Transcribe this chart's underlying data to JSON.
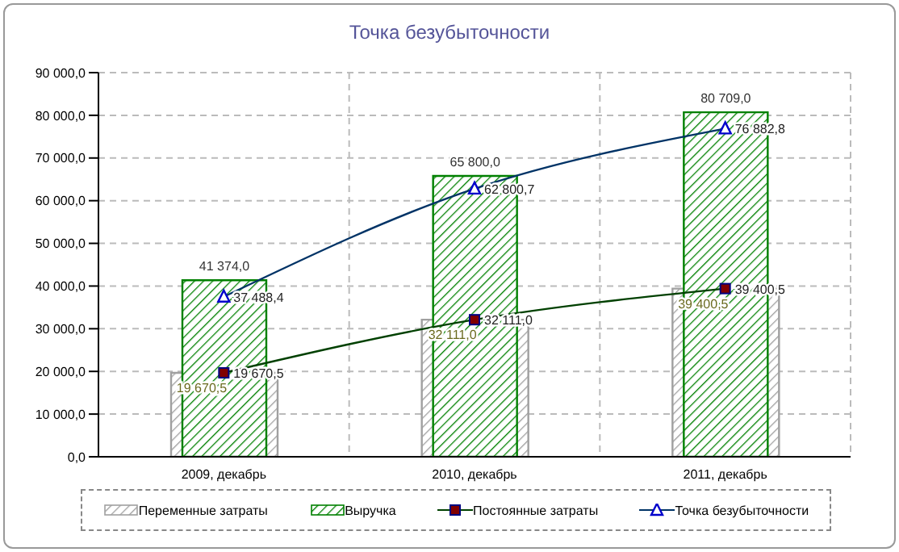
{
  "chart_data": {
    "type": "bar",
    "title": "Точка безубыточности",
    "categories": [
      "2009, декабрь",
      "2010, декабрь",
      "2011, декабрь"
    ],
    "series": [
      {
        "name": "Переменные затраты",
        "color": "#a0a0a0",
        "values": [
          19670.5,
          32111.0,
          39400.5
        ],
        "value_labels": [
          "19 670,5",
          "32 111,0",
          "39 400,5"
        ]
      },
      {
        "name": "Выручка",
        "color": "#008000",
        "values": [
          41374.0,
          65800.0,
          80709.0
        ],
        "value_labels": [
          "41 374,0",
          "65 800,0",
          "80 709,0"
        ]
      },
      {
        "name": "Постоянные затраты",
        "type": "line",
        "color": "#004000",
        "marker": "square",
        "values": [
          19670.5,
          32111.0,
          39400.5
        ],
        "value_labels": [
          "19 670,5",
          "32 111,0",
          "39 400,5"
        ]
      },
      {
        "name": "Точка безубыточности",
        "type": "line",
        "color": "#003366",
        "marker": "triangle",
        "values": [
          37488.4,
          62800.7,
          76882.8
        ],
        "value_labels": [
          "37 488,4",
          "62 800,7",
          "76 882,8"
        ]
      }
    ],
    "ylim": [
      0,
      90000
    ],
    "yticks": [
      {
        "value": 0,
        "label": "0,0"
      },
      {
        "value": 10000,
        "label": "10 000,0"
      },
      {
        "value": 20000,
        "label": "20 000,0"
      },
      {
        "value": 30000,
        "label": "30 000,0"
      },
      {
        "value": 40000,
        "label": "40 000,0"
      },
      {
        "value": 50000,
        "label": "50 000,0"
      },
      {
        "value": 60000,
        "label": "60 000,0"
      },
      {
        "value": 70000,
        "label": "70 000,0"
      },
      {
        "value": 80000,
        "label": "80 000,0"
      },
      {
        "value": 90000,
        "label": "90 000,0"
      }
    ],
    "grid": true,
    "legend": "bottom",
    "line_style": "solid"
  }
}
